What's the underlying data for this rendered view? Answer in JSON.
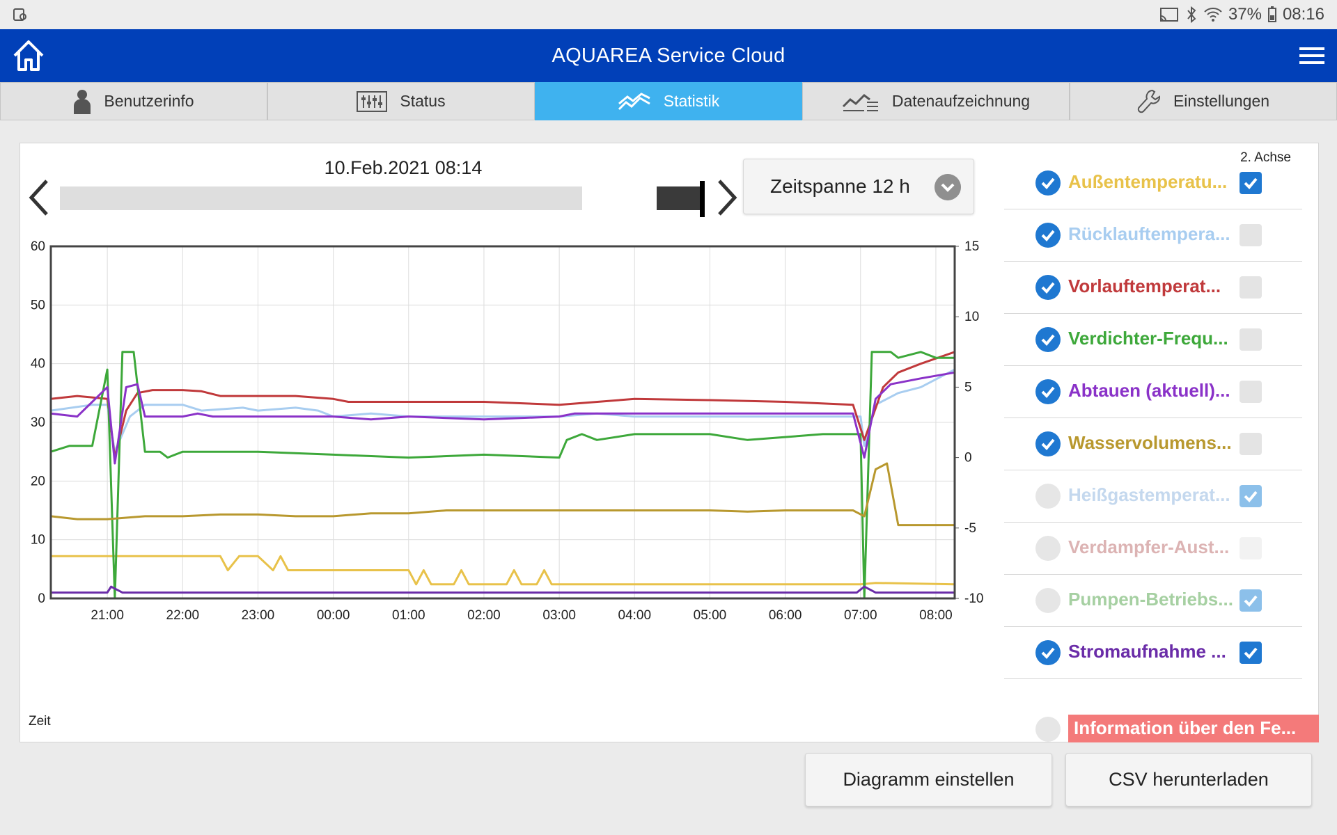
{
  "statusbar": {
    "battery": "37%",
    "time": "08:16"
  },
  "app": {
    "title": "AQUAREA Service Cloud"
  },
  "tabs": [
    {
      "label": "Benutzerinfo",
      "icon": "user-icon"
    },
    {
      "label": "Status",
      "icon": "sliders-icon"
    },
    {
      "label": "Statistik",
      "icon": "chart-line-icon",
      "active": true
    },
    {
      "label": "Datenaufzeichnung",
      "icon": "data-record-icon"
    },
    {
      "label": "Einstellungen",
      "icon": "wrench-icon"
    }
  ],
  "timeline": {
    "datetime": "10.Feb.2021 08:14",
    "position": 0.97
  },
  "zeitspanne": {
    "label": "Zeitspanne 12 h"
  },
  "legend": {
    "achse_label": "2. Achse",
    "items": [
      {
        "label": "Außentemperatu...",
        "color": "#e8c24a",
        "checked": true,
        "axis2": true
      },
      {
        "label": "Rücklauftempera...",
        "color": "#a8cdf0",
        "checked": true,
        "axis2": false
      },
      {
        "label": "Vorlauftemperat...",
        "color": "#c0393b",
        "checked": true,
        "axis2": false
      },
      {
        "label": "Verdichter-Frequ...",
        "color": "#3da83a",
        "checked": true,
        "axis2": false
      },
      {
        "label": "Abtauen (aktuell)...",
        "color": "#8a32c8",
        "checked": true,
        "axis2": false
      },
      {
        "label": "Wasservolumens...",
        "color": "#b8982e",
        "checked": true,
        "axis2": false
      },
      {
        "label": "Heißgastemperat...",
        "color": "#c4d8ee",
        "checked": false,
        "axis2": true
      },
      {
        "label": "Verdampfer-Aust...",
        "color": "#dcb3b3",
        "checked": false,
        "axis2": false
      },
      {
        "label": "Pumpen-Betriebs...",
        "color": "#a6d0a2",
        "checked": false,
        "axis2": true
      },
      {
        "label": "Stromaufnahme ...",
        "color": "#6a2ca8",
        "checked": true,
        "axis2": true
      }
    ],
    "info": {
      "label": "Information über den Fe...",
      "checked": false
    }
  },
  "chart_data": {
    "type": "line",
    "xlabel": "Zeit",
    "x_ticks": [
      "21:00",
      "22:00",
      "23:00",
      "00:00",
      "01:00",
      "02:00",
      "03:00",
      "04:00",
      "05:00",
      "06:00",
      "07:00",
      "08:00"
    ],
    "x_range": [
      20.25,
      32.25
    ],
    "ylim": [
      0,
      60
    ],
    "y_ticks": [
      0,
      10,
      20,
      30,
      40,
      50,
      60
    ],
    "y2lim": [
      -10,
      15
    ],
    "y2_ticks": [
      -10,
      -5,
      0,
      5,
      10,
      15
    ],
    "series": [
      {
        "name": "Außentemperatu...",
        "color": "#e8c24a",
        "axis": "y2",
        "points": [
          [
            20.25,
            -7
          ],
          [
            20.5,
            -7
          ],
          [
            21,
            -7
          ],
          [
            21.5,
            -7
          ],
          [
            22,
            -7
          ],
          [
            22.5,
            -7
          ],
          [
            22.6,
            -8
          ],
          [
            22.75,
            -7
          ],
          [
            23,
            -7
          ],
          [
            23.2,
            -8
          ],
          [
            23.3,
            -7
          ],
          [
            23.4,
            -8
          ],
          [
            24,
            -8
          ],
          [
            25,
            -8
          ],
          [
            25.1,
            -9
          ],
          [
            25.2,
            -8
          ],
          [
            25.3,
            -9
          ],
          [
            25.6,
            -9
          ],
          [
            25.7,
            -8
          ],
          [
            25.8,
            -9
          ],
          [
            26.3,
            -9
          ],
          [
            26.4,
            -8
          ],
          [
            26.5,
            -9
          ],
          [
            26.7,
            -9
          ],
          [
            26.8,
            -8
          ],
          [
            26.9,
            -9
          ],
          [
            28,
            -9
          ],
          [
            30,
            -9
          ],
          [
            31,
            -9
          ],
          [
            31.2,
            -8.9
          ],
          [
            32.25,
            -9
          ]
        ]
      },
      {
        "name": "Rücklauftempera...",
        "color": "#a8cdf0",
        "axis": "y",
        "points": [
          [
            20.25,
            32
          ],
          [
            20.8,
            33
          ],
          [
            21,
            33
          ],
          [
            21.1,
            25
          ],
          [
            21.3,
            31
          ],
          [
            21.5,
            33
          ],
          [
            22,
            33
          ],
          [
            22.25,
            32
          ],
          [
            22.8,
            32.5
          ],
          [
            23,
            32
          ],
          [
            23.5,
            32.5
          ],
          [
            23.8,
            32
          ],
          [
            24,
            31
          ],
          [
            24.5,
            31.5
          ],
          [
            25,
            31
          ],
          [
            26,
            31
          ],
          [
            27,
            31
          ],
          [
            27.5,
            31.5
          ],
          [
            28,
            31
          ],
          [
            29,
            31
          ],
          [
            30,
            31
          ],
          [
            31,
            31
          ],
          [
            31.05,
            26
          ],
          [
            31.2,
            33
          ],
          [
            31.5,
            35
          ],
          [
            31.8,
            36
          ],
          [
            32.25,
            39
          ]
        ]
      },
      {
        "name": "Vorlauftemperat...",
        "color": "#c0393b",
        "axis": "y",
        "points": [
          [
            20.25,
            34
          ],
          [
            20.6,
            34.5
          ],
          [
            21,
            34
          ],
          [
            21.1,
            24
          ],
          [
            21.25,
            32
          ],
          [
            21.4,
            35
          ],
          [
            21.6,
            35.5
          ],
          [
            22,
            35.5
          ],
          [
            22.25,
            35.3
          ],
          [
            22.5,
            34.5
          ],
          [
            23,
            34.5
          ],
          [
            23.5,
            34.5
          ],
          [
            24,
            34
          ],
          [
            24.2,
            33.5
          ],
          [
            25,
            33.5
          ],
          [
            26,
            33.5
          ],
          [
            27,
            33
          ],
          [
            28,
            34
          ],
          [
            29,
            33.8
          ],
          [
            30,
            33.5
          ],
          [
            30.9,
            33
          ],
          [
            31.05,
            27
          ],
          [
            31.3,
            36
          ],
          [
            31.5,
            38.5
          ],
          [
            31.8,
            40
          ],
          [
            32.25,
            42
          ]
        ]
      },
      {
        "name": "Verdichter-Frequ...",
        "color": "#3da83a",
        "axis": "y",
        "points": [
          [
            20.25,
            25
          ],
          [
            20.5,
            26
          ],
          [
            20.8,
            26
          ],
          [
            21,
            39
          ],
          [
            21.1,
            0
          ],
          [
            21.2,
            42
          ],
          [
            21.35,
            42
          ],
          [
            21.5,
            25
          ],
          [
            21.7,
            25
          ],
          [
            21.8,
            24
          ],
          [
            22,
            25
          ],
          [
            23,
            25
          ],
          [
            24,
            24.5
          ],
          [
            25,
            24
          ],
          [
            26,
            24.5
          ],
          [
            27,
            24
          ],
          [
            27.1,
            27
          ],
          [
            27.3,
            28
          ],
          [
            27.5,
            27
          ],
          [
            28,
            28
          ],
          [
            29,
            28
          ],
          [
            29.5,
            27
          ],
          [
            30,
            27.5
          ],
          [
            30.5,
            28
          ],
          [
            30.9,
            28
          ],
          [
            31,
            28
          ],
          [
            31.05,
            0
          ],
          [
            31.15,
            42
          ],
          [
            31.4,
            42
          ],
          [
            31.5,
            41
          ],
          [
            31.8,
            42
          ],
          [
            32,
            41
          ],
          [
            32.25,
            41
          ]
        ]
      },
      {
        "name": "Abtauen (aktuell)...",
        "color": "#8a32c8",
        "axis": "y",
        "points": [
          [
            20.25,
            31.5
          ],
          [
            20.6,
            31
          ],
          [
            21,
            36
          ],
          [
            21.1,
            23
          ],
          [
            21.25,
            36
          ],
          [
            21.4,
            36.5
          ],
          [
            21.5,
            31
          ],
          [
            22,
            31
          ],
          [
            22.2,
            31.5
          ],
          [
            22.4,
            31
          ],
          [
            23,
            31
          ],
          [
            24,
            31
          ],
          [
            24.5,
            30.5
          ],
          [
            25,
            31
          ],
          [
            26,
            30.5
          ],
          [
            27,
            31
          ],
          [
            27.2,
            31.5
          ],
          [
            28,
            31.5
          ],
          [
            29,
            31.5
          ],
          [
            30,
            31.5
          ],
          [
            30.9,
            31.5
          ],
          [
            31.05,
            24
          ],
          [
            31.2,
            34
          ],
          [
            31.4,
            36.5
          ],
          [
            31.8,
            37.5
          ],
          [
            32.25,
            38.5
          ]
        ]
      },
      {
        "name": "Wasservolumens...",
        "color": "#b8982e",
        "axis": "y",
        "points": [
          [
            20.25,
            14
          ],
          [
            20.6,
            13.5
          ],
          [
            21,
            13.5
          ],
          [
            21.5,
            14
          ],
          [
            22,
            14
          ],
          [
            22.5,
            14.3
          ],
          [
            23,
            14.3
          ],
          [
            23.5,
            14
          ],
          [
            24,
            14
          ],
          [
            24.5,
            14.5
          ],
          [
            25,
            14.5
          ],
          [
            25.5,
            15
          ],
          [
            26,
            15
          ],
          [
            27,
            15
          ],
          [
            28,
            15
          ],
          [
            29,
            15
          ],
          [
            29.5,
            14.8
          ],
          [
            30,
            15
          ],
          [
            30.9,
            15
          ],
          [
            31.05,
            14
          ],
          [
            31.2,
            22
          ],
          [
            31.35,
            23
          ],
          [
            31.5,
            12.5
          ],
          [
            31.8,
            12.5
          ],
          [
            32.25,
            12.5
          ]
        ]
      },
      {
        "name": "Stromaufnahme ...",
        "color": "#6a2ca8",
        "axis": "y",
        "points": [
          [
            20.25,
            1
          ],
          [
            21,
            1
          ],
          [
            21.05,
            2
          ],
          [
            21.2,
            1
          ],
          [
            22,
            1
          ],
          [
            24,
            1
          ],
          [
            26,
            1
          ],
          [
            28,
            1
          ],
          [
            30,
            1
          ],
          [
            30.95,
            1
          ],
          [
            31.05,
            2
          ],
          [
            31.2,
            1
          ],
          [
            32.25,
            1
          ]
        ]
      }
    ]
  },
  "buttons": {
    "diagramm": "Diagramm einstellen",
    "csv": "CSV herunterladen"
  }
}
